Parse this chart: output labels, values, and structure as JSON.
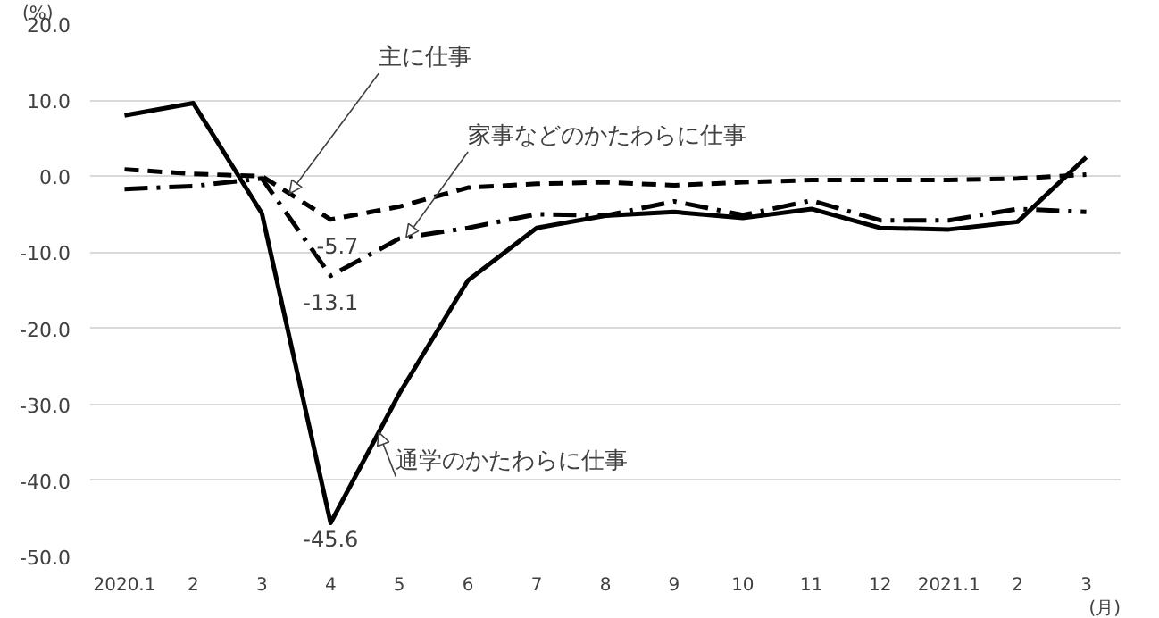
{
  "chart_data": {
    "type": "line",
    "ylabel": "(%)",
    "xlabel": "(月)",
    "categories": [
      "2020.1",
      "2",
      "3",
      "4",
      "5",
      "6",
      "7",
      "8",
      "9",
      "10",
      "11",
      "12",
      "2021.1",
      "2",
      "3"
    ],
    "series": [
      {
        "name": "通学のかたわらに仕事",
        "color": "#000000",
        "line_style": "solid",
        "values": [
          8.0,
          9.6,
          -4.9,
          -45.6,
          -28.6,
          -13.7,
          -6.8,
          -5.2,
          -4.7,
          -5.5,
          -4.3,
          -6.8,
          -7.0,
          -6.0,
          2.5
        ]
      },
      {
        "name": "主に仕事",
        "color": "#000000",
        "line_style": "dashed",
        "values": [
          0.9,
          0.3,
          0.0,
          -5.7,
          -4.0,
          -1.5,
          -1.0,
          -0.8,
          -1.2,
          -0.8,
          -0.5,
          -0.5,
          -0.5,
          -0.3,
          0.2
        ]
      },
      {
        "name": "家事などのかたわらに仕事",
        "color": "#000000",
        "line_style": "dashdot",
        "values": [
          -1.7,
          -1.3,
          -0.3,
          -13.1,
          -8.2,
          -6.8,
          -5.0,
          -5.2,
          -3.3,
          -5.1,
          -3.2,
          -5.8,
          -5.8,
          -4.3,
          -4.7
        ]
      }
    ],
    "annotations": [
      {
        "text": "-45.6",
        "x": "4",
        "y": -45.6
      },
      {
        "text": "-5.7",
        "x": "4",
        "y": -5.7
      },
      {
        "text": "-13.1",
        "x": "4",
        "y": -13.1
      }
    ],
    "ylim": [
      -50,
      20
    ],
    "yticks": [
      {
        "value": -50,
        "label": "-50.0"
      },
      {
        "value": -40,
        "label": "-40.0"
      },
      {
        "value": -30,
        "label": "-30.0"
      },
      {
        "value": -20,
        "label": "-20.0"
      },
      {
        "value": -10,
        "label": "-10.0"
      },
      {
        "value": 0,
        "label": "0.0"
      },
      {
        "value": 10,
        "label": "10.0"
      },
      {
        "value": 20,
        "label": "20.0"
      }
    ],
    "grid": "y",
    "legend": false
  }
}
